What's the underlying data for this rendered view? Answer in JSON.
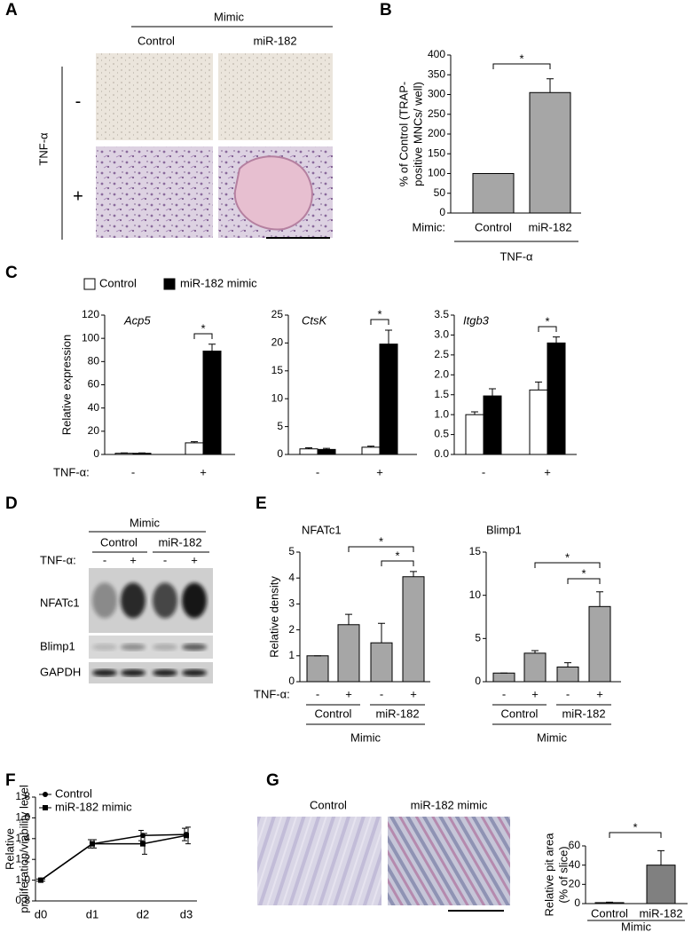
{
  "panel_labels": [
    "A",
    "B",
    "C",
    "D",
    "E",
    "F",
    "G"
  ],
  "panel_a": {
    "header": "Mimic",
    "columns": [
      "Control",
      "miR-182"
    ],
    "row_label": "TNF-α",
    "rows": [
      "-",
      "+"
    ]
  },
  "panel_d": {
    "header": "Mimic",
    "columns": [
      "Control",
      "miR-182"
    ],
    "treatment_label": "TNF-α:",
    "treatment": [
      "-",
      "+",
      "-",
      "+"
    ],
    "bands": [
      "NFATc1",
      "Blimp1",
      "GAPDH"
    ]
  },
  "panel_g": {
    "columns": [
      "Control",
      "miR-182 mimic"
    ]
  },
  "chart_data": [
    {
      "type": "bar",
      "ylabel": [
        "% of Control (TRAP-",
        "positive MNCs/ well)"
      ],
      "xlabel": "Mimic:",
      "group_label": "TNF-α",
      "categories": [
        "Control",
        "miR-182"
      ],
      "values": [
        100,
        305
      ],
      "errors": [
        0,
        35
      ],
      "color": "#a6a6a6",
      "ylim": [
        0,
        400
      ],
      "yticks": [
        0,
        50,
        100,
        150,
        200,
        250,
        300,
        350,
        400
      ],
      "annotations": [
        "*"
      ]
    },
    {
      "type": "bar",
      "title": "Acp5",
      "ylabel": [
        "Relative expression"
      ],
      "xlabel": "TNF-α:",
      "categories": [
        "-",
        "+"
      ],
      "series": [
        {
          "name": "Control",
          "color": "#ffffff",
          "values": [
            1,
            10
          ],
          "errors": [
            0.3,
            1
          ]
        },
        {
          "name": "miR-182 mimic",
          "color": "#000000",
          "values": [
            1,
            89
          ],
          "errors": [
            0.3,
            6
          ]
        }
      ],
      "ylim": [
        0,
        120
      ],
      "yticks": [
        0,
        20,
        40,
        60,
        80,
        100,
        120
      ],
      "annotations": [
        "*"
      ]
    },
    {
      "type": "bar",
      "title": "CtsK",
      "categories": [
        "-",
        "+"
      ],
      "series": [
        {
          "color": "#ffffff",
          "values": [
            1,
            1.3
          ],
          "errors": [
            0.2,
            0.2
          ]
        },
        {
          "color": "#000000",
          "values": [
            0.9,
            19.8
          ],
          "errors": [
            0.2,
            2.5
          ]
        }
      ],
      "ylim": [
        0,
        25
      ],
      "yticks": [
        0,
        5,
        10,
        15,
        20,
        25
      ],
      "annotations": [
        "*"
      ]
    },
    {
      "type": "bar",
      "title": "Itgb3",
      "categories": [
        "-",
        "+"
      ],
      "series": [
        {
          "color": "#ffffff",
          "values": [
            1.0,
            1.62
          ],
          "errors": [
            0.07,
            0.2
          ]
        },
        {
          "color": "#000000",
          "values": [
            1.47,
            2.8
          ],
          "errors": [
            0.18,
            0.15
          ]
        }
      ],
      "ylim": [
        0,
        3.5
      ],
      "yticks": [
        {
          "value": 0,
          "label": "0.0"
        },
        0.5,
        {
          "value": 1,
          "label": "1.0"
        },
        1.5,
        {
          "value": 2,
          "label": "2.0"
        },
        2.5,
        {
          "value": 3,
          "label": "3.0"
        },
        3.5
      ],
      "annotations": [
        "*"
      ]
    },
    {
      "type": "bar",
      "title": "NFATc1",
      "ylabel": [
        "Relative density"
      ],
      "xlabel": "TNF-α:",
      "categories": [
        "-",
        "+",
        "-",
        "+"
      ],
      "groups": [
        "Control",
        "miR-182"
      ],
      "group_label": "Mimic",
      "values": [
        1,
        2.2,
        1.5,
        4.05
      ],
      "errors": [
        0,
        0.4,
        0.75,
        0.2
      ],
      "color": "#a6a6a6",
      "ylim": [
        0,
        5
      ],
      "yticks": [
        0,
        1,
        2,
        3,
        4,
        5
      ],
      "annotations": [
        "*",
        "*"
      ]
    },
    {
      "type": "bar",
      "title": "Blimp1",
      "categories": [
        "-",
        "+",
        "-",
        "+"
      ],
      "groups": [
        "Control",
        "miR-182"
      ],
      "group_label": "Mimic",
      "values": [
        1,
        3.3,
        1.7,
        8.7
      ],
      "errors": [
        0,
        0.3,
        0.5,
        1.7
      ],
      "color": "#a6a6a6",
      "ylim": [
        0,
        15
      ],
      "yticks": [
        0,
        5,
        10,
        15
      ],
      "annotations": [
        "*",
        "*"
      ]
    },
    {
      "type": "line",
      "ylabel": [
        "Relative",
        "proliferation/viability level"
      ],
      "categories": [
        "d0",
        "d1",
        "d2",
        "d3"
      ],
      "series": [
        {
          "name": "Control",
          "color": "#000000",
          "marker": "circle",
          "values": [
            1.0,
            1.35,
            1.43,
            1.44
          ],
          "errors": [
            0.01,
            0.04,
            0.05,
            0.06
          ]
        },
        {
          "name": "miR-182 mimic",
          "color": "#000000",
          "marker": "square",
          "values": [
            1.0,
            1.35,
            1.35,
            1.43
          ],
          "errors": [
            0.01,
            0.04,
            0.1,
            0.08
          ]
        }
      ],
      "ylim": [
        0.8,
        1.8
      ],
      "yticks": [
        0.8,
        {
          "value": 1,
          "label": "1.0"
        },
        1.2,
        1.4,
        1.6,
        1.8
      ]
    },
    {
      "type": "bar",
      "ylabel": [
        "Relative pit area",
        "(% of slice)"
      ],
      "categories": [
        "Control",
        "miR-182"
      ],
      "group_label": "Mimic",
      "values": [
        1,
        40
      ],
      "errors": [
        0.5,
        15
      ],
      "color": "#808080",
      "ylim": [
        0,
        60
      ],
      "yticks": [
        0,
        20,
        40,
        60
      ],
      "annotations": [
        "*"
      ]
    }
  ]
}
